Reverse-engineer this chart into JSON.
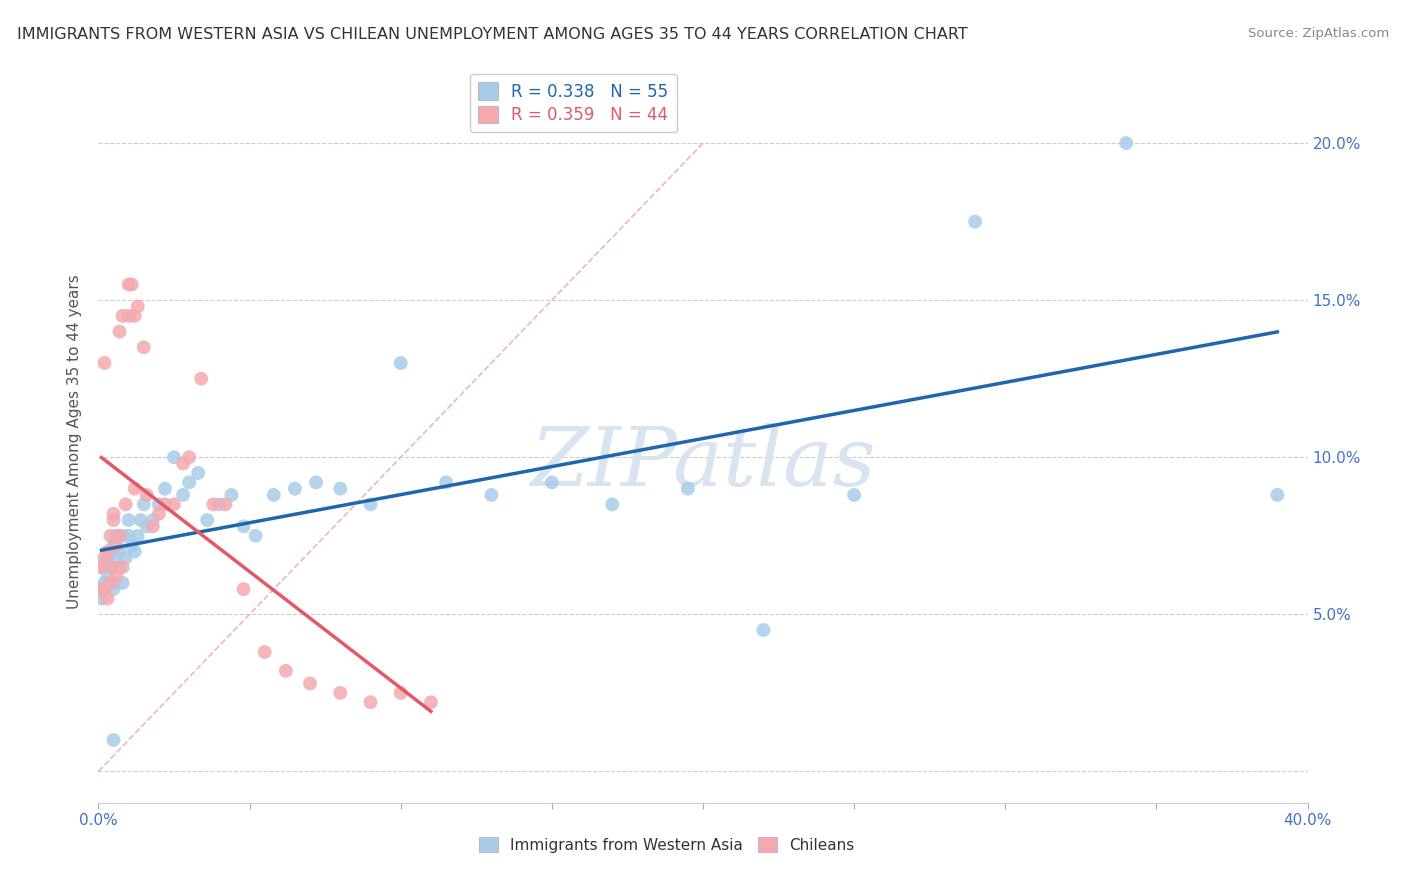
{
  "title": "IMMIGRANTS FROM WESTERN ASIA VS CHILEAN UNEMPLOYMENT AMONG AGES 35 TO 44 YEARS CORRELATION CHART",
  "source": "Source: ZipAtlas.com",
  "ylabel": "Unemployment Among Ages 35 to 44 years",
  "xlim": [
    0.0,
    0.4
  ],
  "ylim": [
    -0.01,
    0.22
  ],
  "xticks": [
    0.0,
    0.05,
    0.1,
    0.15,
    0.2,
    0.25,
    0.3,
    0.35,
    0.4
  ],
  "yticks": [
    0.0,
    0.05,
    0.1,
    0.15,
    0.2
  ],
  "blue_R": "0.338",
  "blue_N": "55",
  "pink_R": "0.359",
  "pink_N": "44",
  "blue_color": "#a8cce8",
  "pink_color": "#f4a9b0",
  "blue_line_color": "#2166ac",
  "pink_line_color": "#e05a6a",
  "diagonal_color": "#e8b0b8",
  "watermark_color": "#d8e4f0",
  "blue_scatter_x": [
    0.001,
    0.001,
    0.002,
    0.002,
    0.003,
    0.003,
    0.004,
    0.004,
    0.005,
    0.005,
    0.005,
    0.006,
    0.006,
    0.007,
    0.007,
    0.008,
    0.008,
    0.009,
    0.01,
    0.01,
    0.011,
    0.012,
    0.013,
    0.014,
    0.015,
    0.016,
    0.018,
    0.02,
    0.022,
    0.025,
    0.028,
    0.03,
    0.033,
    0.036,
    0.04,
    0.044,
    0.048,
    0.052,
    0.058,
    0.065,
    0.072,
    0.08,
    0.09,
    0.1,
    0.115,
    0.13,
    0.15,
    0.17,
    0.195,
    0.22,
    0.25,
    0.29,
    0.34,
    0.39,
    0.005
  ],
  "blue_scatter_y": [
    0.065,
    0.055,
    0.06,
    0.058,
    0.062,
    0.068,
    0.065,
    0.07,
    0.06,
    0.072,
    0.058,
    0.068,
    0.075,
    0.065,
    0.07,
    0.075,
    0.06,
    0.068,
    0.075,
    0.08,
    0.072,
    0.07,
    0.075,
    0.08,
    0.085,
    0.078,
    0.08,
    0.085,
    0.09,
    0.1,
    0.088,
    0.092,
    0.095,
    0.08,
    0.085,
    0.088,
    0.078,
    0.075,
    0.088,
    0.09,
    0.092,
    0.09,
    0.085,
    0.13,
    0.092,
    0.088,
    0.092,
    0.085,
    0.09,
    0.045,
    0.088,
    0.175,
    0.2,
    0.088,
    0.01
  ],
  "pink_scatter_x": [
    0.001,
    0.001,
    0.002,
    0.002,
    0.002,
    0.003,
    0.003,
    0.004,
    0.004,
    0.005,
    0.005,
    0.005,
    0.006,
    0.006,
    0.007,
    0.007,
    0.008,
    0.008,
    0.009,
    0.01,
    0.01,
    0.011,
    0.012,
    0.012,
    0.013,
    0.015,
    0.016,
    0.018,
    0.02,
    0.022,
    0.025,
    0.028,
    0.03,
    0.034,
    0.038,
    0.042,
    0.048,
    0.055,
    0.062,
    0.07,
    0.08,
    0.09,
    0.1,
    0.11
  ],
  "pink_scatter_y": [
    0.065,
    0.058,
    0.068,
    0.058,
    0.13,
    0.07,
    0.055,
    0.075,
    0.06,
    0.082,
    0.065,
    0.08,
    0.062,
    0.072,
    0.075,
    0.14,
    0.065,
    0.145,
    0.085,
    0.145,
    0.155,
    0.155,
    0.145,
    0.09,
    0.148,
    0.135,
    0.088,
    0.078,
    0.082,
    0.085,
    0.085,
    0.098,
    0.1,
    0.125,
    0.085,
    0.085,
    0.058,
    0.038,
    0.032,
    0.028,
    0.025,
    0.022,
    0.025,
    0.022
  ]
}
